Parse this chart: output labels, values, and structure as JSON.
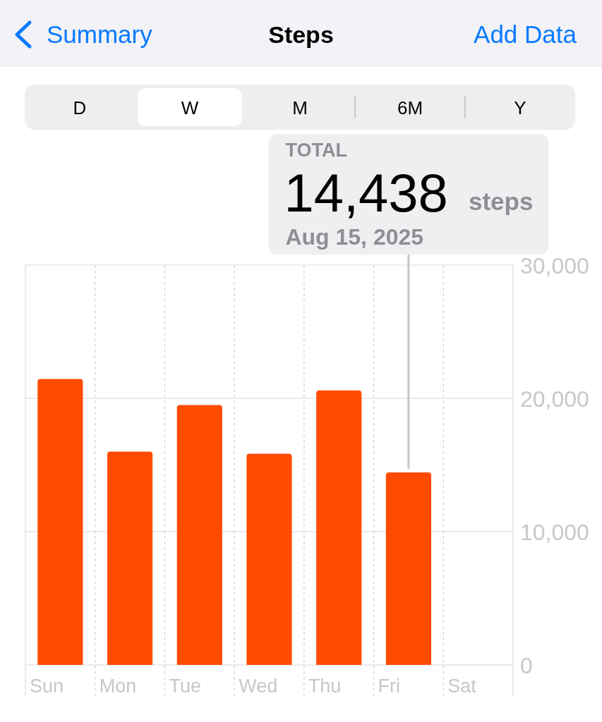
{
  "chart_data": {
    "type": "bar",
    "title": "Steps",
    "categories": [
      "Sun",
      "Mon",
      "Tue",
      "Wed",
      "Thu",
      "Fri",
      "Sat"
    ],
    "values": [
      21450,
      16000,
      19500,
      15850,
      20600,
      14438,
      null
    ],
    "color": "#ff4b00",
    "ylim": [
      0,
      30000
    ],
    "yticks": [
      0,
      {
        "value": 10000,
        "label": "10,000"
      },
      {
        "value": 20000,
        "label": "20,000"
      },
      {
        "value": 30000,
        "label": "30,000"
      }
    ],
    "grid": true,
    "annotations": [
      "Summary",
      "Add Data",
      "D",
      "W",
      "M",
      "6M",
      "Y",
      "TOTAL",
      "14,438",
      "steps",
      "Aug 15, 2025"
    ]
  }
}
